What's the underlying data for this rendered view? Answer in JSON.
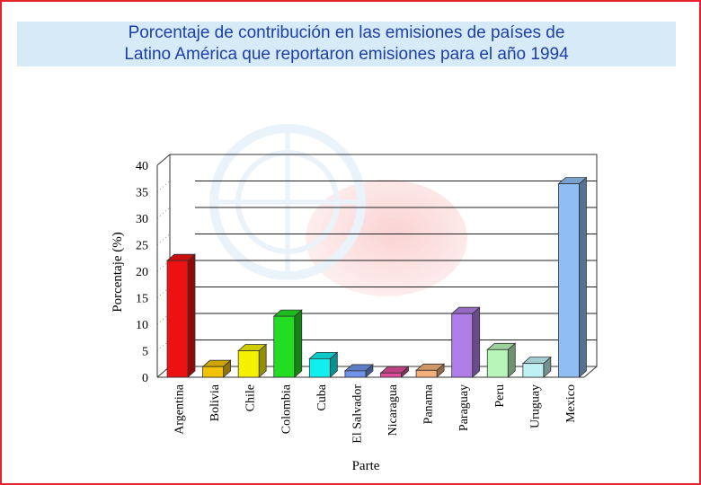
{
  "title": "Porcentaje de contribución en las emisiones de países de\nLatino América que reportaron emisiones para el año 1994",
  "chart_data": {
    "type": "bar",
    "title": "Porcentaje de contribución en las emisiones de países de Latino América que reportaron emisiones para el año 1994",
    "xlabel": "Parte",
    "ylabel": "Porcentaje (%)",
    "ylim": [
      0,
      40
    ],
    "yticks": [
      "0",
      "5",
      "10",
      "15",
      "20",
      "25",
      "30",
      "35",
      "40"
    ],
    "categories": [
      "Argentina",
      "Bolivia",
      "Chile",
      "Colombia",
      "Cuba",
      "El Salvador",
      "Nicaragua",
      "Panama",
      "Paraguay",
      "Peru",
      "Uruguay",
      "Mexico"
    ],
    "values": [
      22,
      2,
      5,
      11.5,
      3.5,
      1.2,
      0.8,
      1.3,
      12,
      5.2,
      2.6,
      36.5
    ],
    "bar_colors": [
      "#ee1111",
      "#f2c200",
      "#f4f000",
      "#22dd22",
      "#11eeee",
      "#6f93e8",
      "#e04c9a",
      "#f3b07a",
      "#b07ee8",
      "#b8f5b8",
      "#bff0f4",
      "#8fbef4"
    ],
    "grid": true,
    "legend": "none"
  }
}
